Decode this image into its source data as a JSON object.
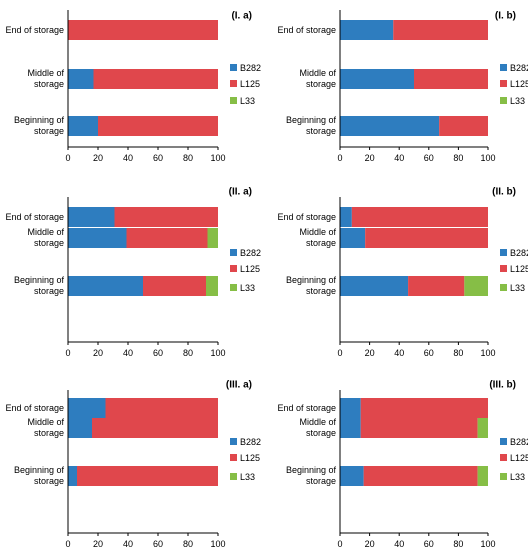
{
  "colors": {
    "B282": "#2E7DBF",
    "L125": "#E0474C",
    "L33": "#86BE46",
    "axis": "#000000"
  },
  "chart_data": [
    {
      "type": "bar",
      "orientation": "horizontal",
      "stacked": true,
      "title": "(I. a)",
      "categories": [
        "Beginning of storage",
        "Middle of storage",
        "End of storage"
      ],
      "series": [
        {
          "name": "B282",
          "values": [
            20,
            17,
            0
          ]
        },
        {
          "name": "L125",
          "values": [
            80,
            83,
            100
          ]
        },
        {
          "name": "L33",
          "values": [
            0,
            0,
            0
          ]
        }
      ],
      "xlim": [
        0,
        100
      ],
      "xticks": [
        "0",
        "20",
        "40",
        "60",
        "80",
        "100"
      ],
      "legend": "right",
      "grid": false
    },
    {
      "type": "bar",
      "orientation": "horizontal",
      "stacked": true,
      "title": "(I. b)",
      "categories": [
        "Beginning of storage",
        "Middle of storage",
        "End of storage"
      ],
      "series": [
        {
          "name": "B282",
          "values": [
            67,
            50,
            36
          ]
        },
        {
          "name": "L125",
          "values": [
            33,
            50,
            64
          ]
        },
        {
          "name": "L33",
          "values": [
            0,
            0,
            0
          ]
        }
      ],
      "xlim": [
        0,
        100
      ],
      "xticks": [
        "0",
        "20",
        "40",
        "60",
        "80",
        "100"
      ],
      "legend": "right",
      "grid": false
    },
    {
      "type": "bar",
      "orientation": "horizontal",
      "stacked": true,
      "title": "(II. a)",
      "categories": [
        "Beginning of storage",
        "Middle of storage",
        "End of storage"
      ],
      "series": [
        {
          "name": "B282",
          "values": [
            50,
            39,
            31
          ]
        },
        {
          "name": "L125",
          "values": [
            42,
            54,
            69
          ]
        },
        {
          "name": "L33",
          "values": [
            8,
            7,
            0
          ]
        }
      ],
      "xlim": [
        0,
        100
      ],
      "xticks": [
        "0",
        "20",
        "40",
        "60",
        "80",
        "100"
      ],
      "legend": "right",
      "grid": false
    },
    {
      "type": "bar",
      "orientation": "horizontal",
      "stacked": true,
      "title": "(II. b)",
      "categories": [
        "Beginning of storage",
        "Middle of storage",
        "End of storage"
      ],
      "series": [
        {
          "name": "B282",
          "values": [
            46,
            17,
            8
          ]
        },
        {
          "name": "L125",
          "values": [
            38,
            83,
            92
          ]
        },
        {
          "name": "L33",
          "values": [
            16,
            0,
            0
          ]
        }
      ],
      "xlim": [
        0,
        100
      ],
      "xticks": [
        "0",
        "20",
        "40",
        "60",
        "80",
        "100"
      ],
      "legend": "right",
      "grid": false
    },
    {
      "type": "bar",
      "orientation": "horizontal",
      "stacked": true,
      "title": "(III. a)",
      "categories": [
        "Beginning of storage",
        "Middle of storage",
        "End of storage"
      ],
      "series": [
        {
          "name": "B282",
          "values": [
            6,
            16,
            25
          ]
        },
        {
          "name": "L125",
          "values": [
            94,
            84,
            75
          ]
        },
        {
          "name": "L33",
          "values": [
            0,
            0,
            0
          ]
        }
      ],
      "xlim": [
        0,
        100
      ],
      "xticks": [
        "0",
        "20",
        "40",
        "60",
        "80",
        "100"
      ],
      "legend": "right",
      "grid": false
    },
    {
      "type": "bar",
      "orientation": "horizontal",
      "stacked": true,
      "title": "(III. b)",
      "categories": [
        "Beginning of storage",
        "Middle of storage",
        "End of storage"
      ],
      "series": [
        {
          "name": "B282",
          "values": [
            16,
            14,
            14
          ]
        },
        {
          "name": "L125",
          "values": [
            77,
            79,
            86
          ]
        },
        {
          "name": "L33",
          "values": [
            7,
            7,
            0
          ]
        }
      ],
      "xlim": [
        0,
        100
      ],
      "xticks": [
        "0",
        "20",
        "40",
        "60",
        "80",
        "100"
      ],
      "legend": "right",
      "grid": false
    }
  ]
}
